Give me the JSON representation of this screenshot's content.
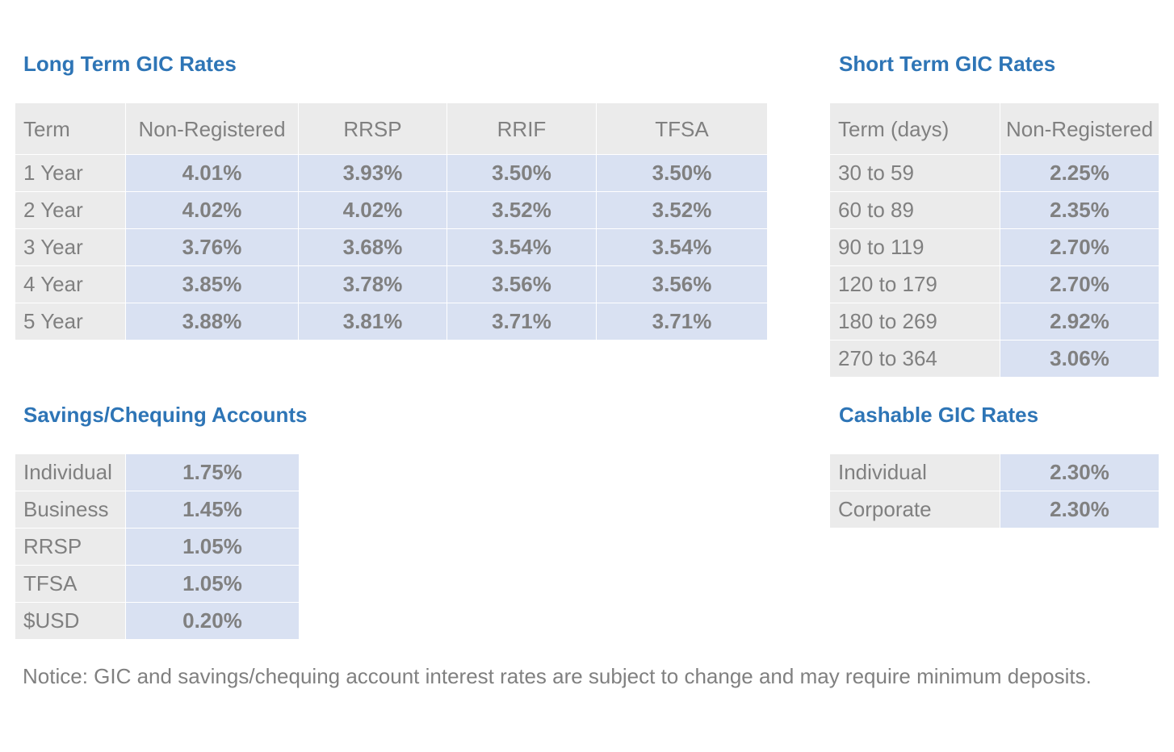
{
  "long_term": {
    "title": "Long Term GIC Rates",
    "headers": [
      "Term",
      "Non-Registered",
      "RRSP",
      "RRIF",
      "TFSA"
    ],
    "rows": [
      {
        "term": "1 Year",
        "non_registered": "4.01%",
        "rrsp": "3.93%",
        "rrif": "3.50%",
        "tfsa": "3.50%"
      },
      {
        "term": "2 Year",
        "non_registered": "4.02%",
        "rrsp": "4.02%",
        "rrif": "3.52%",
        "tfsa": "3.52%"
      },
      {
        "term": "3 Year",
        "non_registered": "3.76%",
        "rrsp": "3.68%",
        "rrif": "3.54%",
        "tfsa": "3.54%"
      },
      {
        "term": "4 Year",
        "non_registered": "3.85%",
        "rrsp": "3.78%",
        "rrif": "3.56%",
        "tfsa": "3.56%"
      },
      {
        "term": "5 Year",
        "non_registered": "3.88%",
        "rrsp": "3.81%",
        "rrif": "3.71%",
        "tfsa": "3.71%"
      }
    ]
  },
  "short_term": {
    "title": "Short Term GIC Rates",
    "headers": [
      "Term (days)",
      "Non-Registered"
    ],
    "rows": [
      {
        "term": "30 to 59",
        "rate": "2.25%"
      },
      {
        "term": "60 to 89",
        "rate": "2.35%"
      },
      {
        "term": "90 to 119",
        "rate": "2.70%"
      },
      {
        "term": "120 to 179",
        "rate": "2.70%"
      },
      {
        "term": "180 to 269",
        "rate": "2.92%"
      },
      {
        "term": "270 to 364",
        "rate": "3.06%"
      }
    ]
  },
  "savings": {
    "title": "Savings/Chequing Accounts",
    "rows": [
      {
        "label": "Individual",
        "rate": "1.75%"
      },
      {
        "label": "Business",
        "rate": "1.45%"
      },
      {
        "label": "RRSP",
        "rate": "1.05%"
      },
      {
        "label": "TFSA",
        "rate": "1.05%"
      },
      {
        "label": "$USD",
        "rate": "0.20%"
      }
    ]
  },
  "cashable": {
    "title": "Cashable GIC Rates",
    "rows": [
      {
        "label": "Individual",
        "rate": "2.30%"
      },
      {
        "label": "Corporate",
        "rate": "2.30%"
      }
    ]
  },
  "notice": "Notice: GIC and savings/chequing account interest rates are subject to change and may require minimum deposits.",
  "colors": {
    "title": "#2e75b6",
    "text": "#808080",
    "label_bg": "#ebebeb",
    "value_bg": "#d9e1f2"
  }
}
